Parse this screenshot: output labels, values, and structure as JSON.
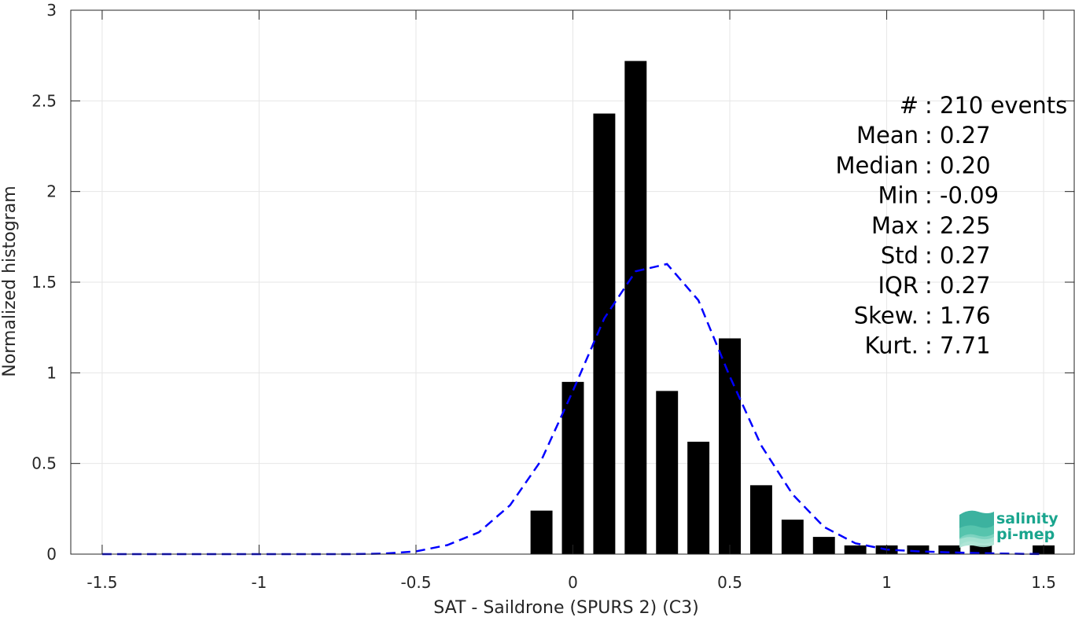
{
  "chart_data": {
    "type": "bar",
    "xlabel": "SAT - Saildrone (SPURS 2) (C3)",
    "ylabel": "Normalized histogram",
    "xlim": [
      -1.6,
      1.6
    ],
    "ylim": [
      0,
      3
    ],
    "xticks": [
      -1.5,
      -1,
      -0.5,
      0,
      0.5,
      1,
      1.5
    ],
    "xtick_labels": [
      "-1.5",
      "-1",
      "-0.5",
      "0",
      "0.5",
      "1",
      "1.5"
    ],
    "yticks": [
      0,
      0.5,
      1,
      1.5,
      2,
      2.5,
      3
    ],
    "ytick_labels": [
      "0",
      "0.5",
      "1",
      "1.5",
      "2",
      "2.5",
      "3"
    ],
    "grid": true,
    "bar_width": 0.07,
    "bars": {
      "x": [
        -0.1,
        0.0,
        0.1,
        0.2,
        0.3,
        0.4,
        0.5,
        0.6,
        0.7,
        0.8,
        0.9,
        1.0,
        1.1,
        1.2,
        1.3,
        1.5
      ],
      "values": [
        0.24,
        0.95,
        2.43,
        2.72,
        0.9,
        0.62,
        1.19,
        0.38,
        0.19,
        0.095,
        0.048,
        0.048,
        0.048,
        0.048,
        0.048,
        0.048
      ],
      "color": "#000000"
    },
    "fit_curve": {
      "style": "dashed",
      "color": "#0000ff",
      "x": [
        -1.5,
        -1.4,
        -1.3,
        -1.2,
        -1.1,
        -1.0,
        -0.9,
        -0.8,
        -0.7,
        -0.6,
        -0.5,
        -0.4,
        -0.3,
        -0.2,
        -0.1,
        0.0,
        0.1,
        0.2,
        0.3,
        0.4,
        0.5,
        0.6,
        0.7,
        0.8,
        0.9,
        1.0,
        1.1,
        1.2,
        1.3,
        1.4,
        1.5
      ],
      "y": [
        0,
        0,
        0,
        0,
        0,
        0,
        0,
        0,
        0,
        0.003,
        0.015,
        0.05,
        0.12,
        0.27,
        0.52,
        0.9,
        1.3,
        1.56,
        1.6,
        1.4,
        0.98,
        0.6,
        0.33,
        0.15,
        0.06,
        0.025,
        0.015,
        0.01,
        0.005,
        0.002,
        0
      ]
    },
    "stats": [
      {
        "label": "#  : 210 events"
      },
      {
        "label": "Mean : 0.27"
      },
      {
        "label": "Median : 0.20"
      },
      {
        "label": "Min : -0.09"
      },
      {
        "label": "Max : 2.25"
      },
      {
        "label": "Std : 0.27"
      },
      {
        "label": "IQR : 0.27"
      },
      {
        "label": "Skew. : 1.76"
      },
      {
        "label": "Kurt. : 7.71"
      }
    ]
  },
  "logo": {
    "line1": "salinity",
    "line2": "pi-mep",
    "color": "#1aa58e"
  }
}
